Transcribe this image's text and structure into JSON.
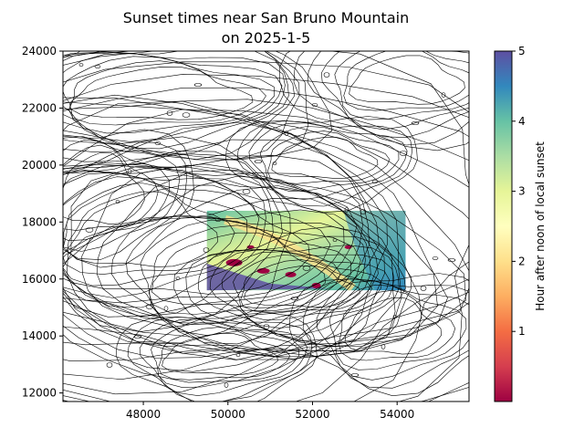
{
  "chart_data": {
    "type": "heatmap",
    "title": "Sunset times near San Bruno Mountain",
    "subtitle": "on 2025-1-5",
    "xlabel": "",
    "ylabel": "",
    "xlim": [
      46100,
      55700
    ],
    "ylim": [
      11700,
      24000
    ],
    "x_ticks": [
      48000,
      50000,
      52000,
      54000
    ],
    "y_ticks": [
      12000,
      14000,
      16000,
      18000,
      20000,
      22000,
      24000
    ],
    "heatmap_extent": {
      "x": [
        49500,
        54200
      ],
      "y": [
        15600,
        18400
      ]
    },
    "colorbar": {
      "label": "Hour after noon of local sunset",
      "range": [
        0,
        5
      ],
      "ticks": [
        1,
        2,
        3,
        4,
        5
      ],
      "colormap": "Spectral"
    },
    "contour_color": "#000000",
    "grid": false
  }
}
